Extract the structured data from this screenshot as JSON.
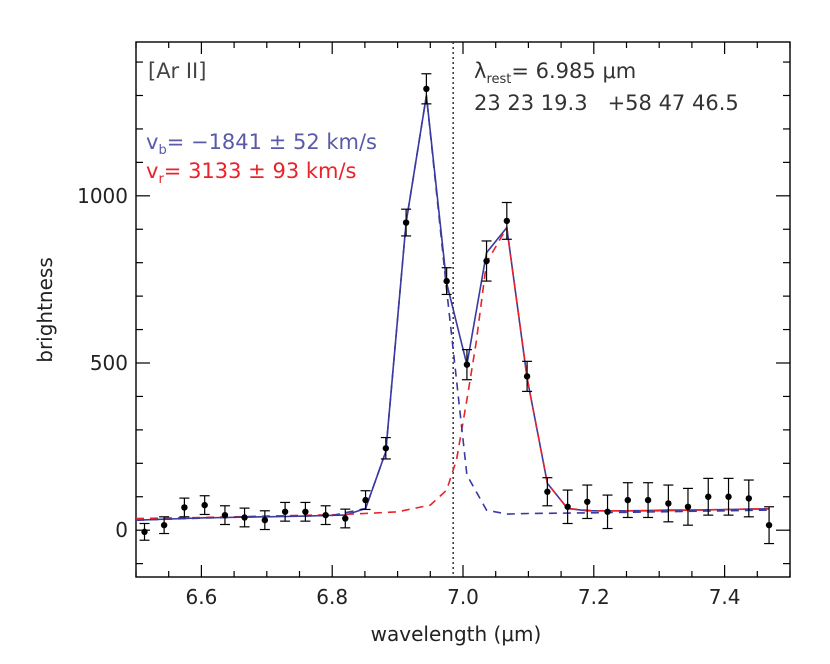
{
  "chart_data": {
    "type": "line",
    "xlabel": "wavelength (μm)",
    "ylabel": "brightness",
    "xlim": [
      6.5,
      7.5
    ],
    "ylim": [
      -140,
      1460
    ],
    "xticks": [
      6.6,
      6.8,
      7.0,
      7.2,
      7.4
    ],
    "xtick_labels": [
      "6.6",
      "6.8",
      "7.0",
      "7.2",
      "7.4"
    ],
    "yticks": [
      0,
      500,
      1000
    ],
    "ytick_labels": [
      "0",
      "500",
      "1000"
    ],
    "rest_wavelength": 6.985,
    "annotations": {
      "line_name": "[Ar II]",
      "rest_label_prefix": "λ",
      "rest_label_sub": "rest",
      "rest_label_value": "= 6.985 μm",
      "coords": "23 23 19.3   +58 47 46.5",
      "vb_prefix": "v",
      "vb_sub": "b",
      "vb_value": "= −1841 ± 52 km/s",
      "vr_prefix": "v",
      "vr_sub": "r",
      "vr_value": "= 3133 ± 93 km/s"
    },
    "colors": {
      "data": "#000000",
      "total_fit": "#3a3aa0",
      "blue_component": "#3a3aa0",
      "red_component": "#e8232a",
      "vb_text": "#5a5aa8",
      "vr_text": "#e8232a",
      "axis": "#000000"
    },
    "series": [
      {
        "style": "points-with-errorbars",
        "x": [
          6.513,
          6.543,
          6.574,
          6.605,
          6.636,
          6.666,
          6.697,
          6.728,
          6.759,
          6.79,
          6.82,
          6.851,
          6.882,
          6.913,
          6.944,
          6.975,
          7.006,
          7.036,
          7.067,
          7.098,
          7.129,
          7.16,
          7.19,
          7.221,
          7.252,
          7.283,
          7.314,
          7.344,
          7.375,
          7.406,
          7.437,
          7.468
        ],
        "y": [
          -5,
          15,
          68,
          75,
          45,
          38,
          30,
          55,
          55,
          45,
          35,
          90,
          245,
          920,
          1320,
          745,
          495,
          805,
          925,
          460,
          115,
          70,
          85,
          55,
          90,
          90,
          80,
          70,
          100,
          100,
          95,
          15
        ],
        "yerr": [
          25,
          25,
          28,
          28,
          28,
          28,
          28,
          28,
          28,
          28,
          28,
          28,
          32,
          40,
          45,
          40,
          45,
          60,
          55,
          45,
          42,
          50,
          50,
          50,
          52,
          52,
          55,
          55,
          55,
          55,
          55,
          55
        ]
      },
      {
        "name": "total fit",
        "style": "solid",
        "x": [
          6.5,
          6.543,
          6.574,
          6.605,
          6.636,
          6.666,
          6.697,
          6.728,
          6.759,
          6.79,
          6.82,
          6.851,
          6.882,
          6.913,
          6.944,
          6.975,
          7.006,
          7.036,
          7.067,
          7.098,
          7.129,
          7.16,
          7.19,
          7.221,
          7.252,
          7.283,
          7.314,
          7.344,
          7.375,
          7.406,
          7.437,
          7.468
        ],
        "y": [
          30,
          33,
          35,
          37,
          38,
          39,
          40,
          41,
          42,
          44,
          45,
          65,
          235,
          920,
          1300,
          740,
          495,
          830,
          905,
          455,
          140,
          65,
          58,
          58,
          58,
          59,
          60,
          60,
          61,
          62,
          63,
          64
        ]
      },
      {
        "name": "blue component",
        "style": "dashed",
        "x": [
          6.5,
          6.6,
          6.7,
          6.8,
          6.851,
          6.882,
          6.913,
          6.944,
          6.975,
          7.006,
          7.036,
          7.067,
          7.1,
          7.2,
          7.3,
          7.4,
          7.468
        ],
        "y": [
          30,
          36,
          41,
          44,
          65,
          235,
          920,
          1300,
          720,
          165,
          60,
          48,
          50,
          52,
          55,
          58,
          60
        ]
      },
      {
        "name": "red component",
        "style": "dashed",
        "x": [
          6.5,
          6.6,
          6.7,
          6.8,
          6.85,
          6.9,
          6.95,
          6.975,
          6.99,
          7.006,
          7.02,
          7.036,
          7.067,
          7.098,
          7.129,
          7.16,
          7.2,
          7.3,
          7.4,
          7.468
        ],
        "y": [
          35,
          38,
          42,
          46,
          50,
          55,
          75,
          120,
          210,
          390,
          560,
          800,
          905,
          455,
          140,
          65,
          58,
          58,
          62,
          64
        ]
      }
    ]
  }
}
